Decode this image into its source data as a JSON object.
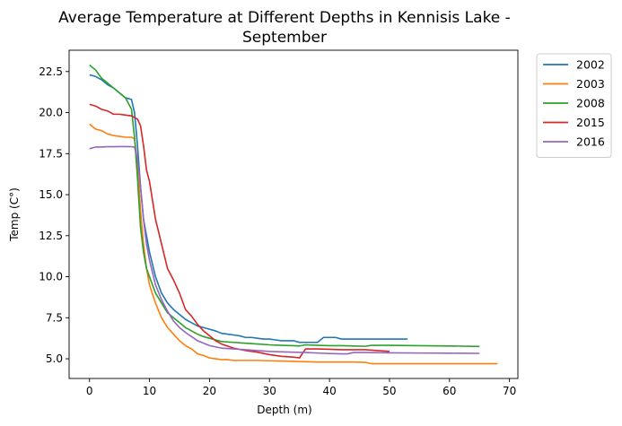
{
  "chart_data": {
    "type": "line",
    "title_lines": [
      "Average Temperature at Different Depths in Kennisis Lake -",
      "September"
    ],
    "xlabel": "Depth (m)",
    "ylabel": "Temp (C°)",
    "xlim": [
      -3.4,
      71.4
    ],
    "ylim": [
      3.8,
      23.8
    ],
    "xticks": [
      0,
      10,
      20,
      30,
      40,
      50,
      60,
      70
    ],
    "xtick_labels": [
      "0",
      "10",
      "20",
      "30",
      "40",
      "50",
      "60",
      "70"
    ],
    "yticks": [
      5.0,
      7.5,
      10.0,
      12.5,
      15.0,
      17.5,
      20.0,
      22.5
    ],
    "ytick_labels": [
      "5.0",
      "7.5",
      "10.0",
      "12.5",
      "15.0",
      "17.5",
      "20.0",
      "22.5"
    ],
    "grid": false,
    "legend_position": "outside-top-right",
    "series": [
      {
        "name": "2002",
        "color": "#1f77b4",
        "x": [
          0,
          1,
          2,
          3,
          4,
          5,
          6,
          7,
          7.5,
          8,
          8.5,
          9,
          9.5,
          10,
          11,
          12,
          13,
          14,
          15,
          16,
          17,
          18,
          19,
          20,
          21,
          22,
          23,
          24,
          25,
          26,
          27,
          28,
          29,
          30,
          31,
          32,
          33,
          34,
          35,
          36,
          37,
          38,
          39,
          40,
          41,
          42,
          43,
          44,
          45,
          46,
          47,
          48,
          49,
          50,
          51,
          52,
          53
        ],
        "y": [
          22.3,
          22.2,
          22.0,
          21.7,
          21.5,
          21.2,
          20.9,
          20.8,
          20.0,
          18.0,
          15.5,
          13.5,
          12.5,
          11.5,
          10.0,
          9.0,
          8.4,
          8.0,
          7.7,
          7.4,
          7.2,
          7.0,
          6.9,
          6.8,
          6.7,
          6.55,
          6.5,
          6.45,
          6.4,
          6.3,
          6.3,
          6.25,
          6.2,
          6.2,
          6.15,
          6.1,
          6.1,
          6.1,
          6.0,
          6.0,
          6.0,
          6.0,
          6.3,
          6.3,
          6.3,
          6.2,
          6.2,
          6.2,
          6.2,
          6.2,
          6.2,
          6.2,
          6.2,
          6.2,
          6.2,
          6.2,
          6.2
        ]
      },
      {
        "name": "2003",
        "color": "#ff7f0e",
        "x": [
          0,
          1,
          2,
          3,
          4,
          5,
          6,
          7,
          7.5,
          8,
          8.5,
          9,
          9.5,
          10,
          11,
          12,
          13,
          14,
          15,
          16,
          17,
          18,
          19,
          20,
          21,
          22,
          23,
          24,
          25,
          26,
          28,
          30,
          32,
          34,
          36,
          38,
          40,
          42,
          44,
          46,
          47,
          50,
          55,
          60,
          65,
          68
        ],
        "y": [
          19.3,
          19.0,
          18.9,
          18.7,
          18.6,
          18.55,
          18.5,
          18.5,
          18.4,
          17.0,
          14.0,
          12.0,
          10.5,
          9.5,
          8.4,
          7.5,
          6.9,
          6.5,
          6.1,
          5.8,
          5.6,
          5.3,
          5.2,
          5.05,
          5.0,
          4.95,
          4.95,
          4.9,
          4.9,
          4.9,
          4.9,
          4.88,
          4.86,
          4.84,
          4.82,
          4.8,
          4.8,
          4.8,
          4.8,
          4.78,
          4.7,
          4.7,
          4.7,
          4.7,
          4.7,
          4.7
        ]
      },
      {
        "name": "2008",
        "color": "#2ca02c",
        "x": [
          0,
          1,
          2,
          3,
          4,
          5,
          6,
          7,
          7.5,
          8,
          8.5,
          9,
          9.5,
          10,
          11,
          12,
          13,
          14,
          15,
          16,
          17,
          18,
          19,
          20,
          21,
          22,
          24,
          26,
          28,
          30,
          32,
          34,
          35,
          36,
          38,
          40,
          42,
          44,
          46,
          47,
          50,
          55,
          60,
          65
        ],
        "y": [
          22.9,
          22.6,
          22.1,
          21.8,
          21.5,
          21.2,
          20.9,
          20.2,
          18.5,
          16.0,
          13.0,
          11.5,
          10.5,
          10.0,
          9.0,
          8.4,
          7.8,
          7.5,
          7.2,
          6.9,
          6.7,
          6.5,
          6.35,
          6.25,
          6.15,
          6.05,
          6.0,
          5.95,
          5.9,
          5.85,
          5.82,
          5.8,
          5.78,
          5.85,
          5.82,
          5.8,
          5.8,
          5.78,
          5.76,
          5.82,
          5.82,
          5.8,
          5.78,
          5.75
        ]
      },
      {
        "name": "2015",
        "color": "#d62728",
        "x": [
          0,
          1,
          2,
          3,
          4,
          5,
          6,
          7,
          8,
          8.5,
          9,
          9.5,
          10,
          11,
          12,
          13,
          14,
          15,
          16,
          17,
          18,
          19,
          20,
          21,
          22,
          24,
          26,
          28,
          30,
          32,
          34,
          35,
          36,
          38,
          40,
          42,
          44,
          46,
          48,
          50
        ],
        "y": [
          20.5,
          20.4,
          20.2,
          20.1,
          19.9,
          19.9,
          19.85,
          19.8,
          19.6,
          19.2,
          18.0,
          16.5,
          15.8,
          13.5,
          12.0,
          10.5,
          9.8,
          9.0,
          8.0,
          7.6,
          7.1,
          6.7,
          6.4,
          6.1,
          5.9,
          5.65,
          5.5,
          5.4,
          5.25,
          5.15,
          5.1,
          5.05,
          5.6,
          5.6,
          5.58,
          5.55,
          5.55,
          5.55,
          5.5,
          5.45
        ]
      },
      {
        "name": "2016",
        "color": "#9467bd",
        "x": [
          0,
          1,
          2,
          3,
          4,
          5,
          6,
          7,
          7.5,
          8,
          8.5,
          9,
          9.5,
          10,
          11,
          12,
          13,
          14,
          15,
          16,
          17,
          18,
          19,
          20,
          22,
          24,
          26,
          28,
          30,
          32,
          34,
          36,
          38,
          40,
          42,
          43,
          44,
          46,
          50,
          55,
          60,
          65
        ],
        "y": [
          17.8,
          17.9,
          17.9,
          17.92,
          17.92,
          17.93,
          17.93,
          17.92,
          17.9,
          17.2,
          15.5,
          13.5,
          12.0,
          11.0,
          9.5,
          8.6,
          7.9,
          7.3,
          6.9,
          6.6,
          6.35,
          6.1,
          5.95,
          5.8,
          5.65,
          5.6,
          5.55,
          5.5,
          5.45,
          5.42,
          5.4,
          5.38,
          5.35,
          5.32,
          5.3,
          5.3,
          5.38,
          5.38,
          5.36,
          5.35,
          5.34,
          5.33
        ]
      }
    ]
  }
}
